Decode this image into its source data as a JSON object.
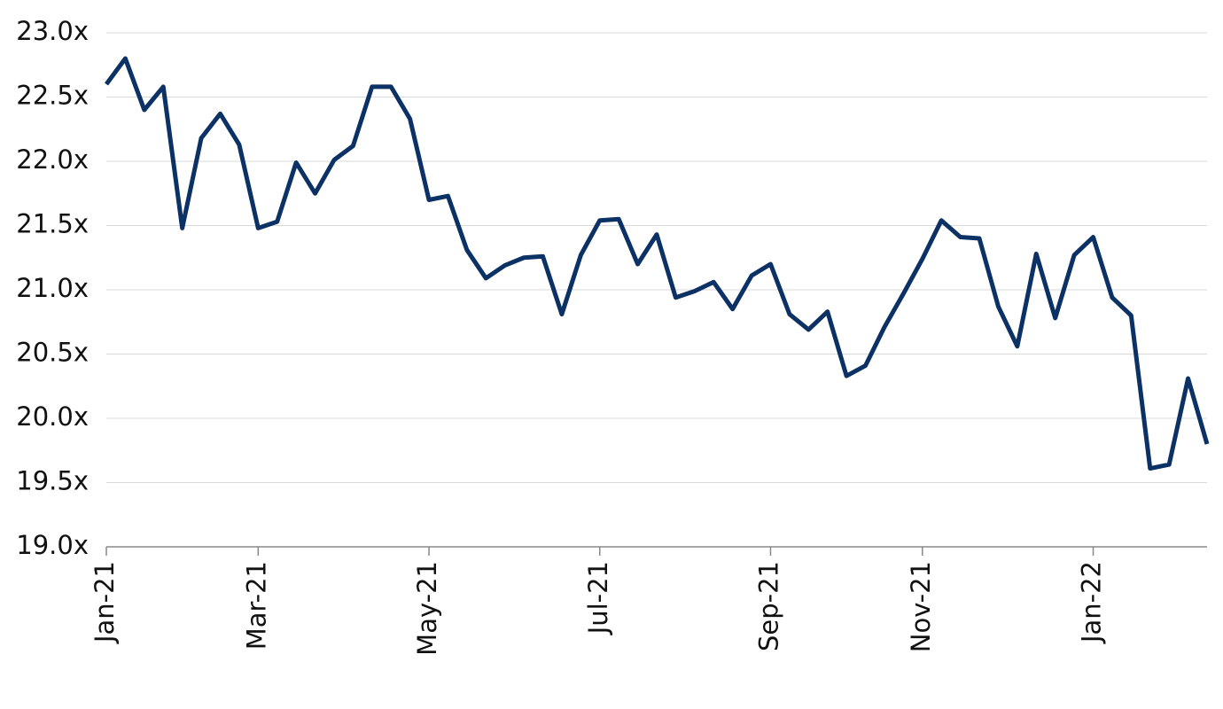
{
  "chart_data": {
    "type": "line",
    "categories": [
      "Jan-21",
      null,
      null,
      null,
      null,
      null,
      null,
      null,
      "Mar-21",
      null,
      null,
      null,
      null,
      null,
      null,
      null,
      null,
      "May-21",
      null,
      null,
      null,
      null,
      null,
      null,
      null,
      null,
      "Jul-21",
      null,
      null,
      null,
      null,
      null,
      null,
      null,
      null,
      "Sep-21",
      null,
      null,
      null,
      null,
      null,
      null,
      null,
      "Nov-21",
      null,
      null,
      null,
      null,
      null,
      null,
      null,
      null,
      "Jan-22",
      null,
      null,
      null,
      null,
      null,
      null
    ],
    "series": [
      {
        "color": "#0b3165",
        "values": [
          22.6,
          22.8,
          22.4,
          22.58,
          21.48,
          22.18,
          22.37,
          22.13,
          21.48,
          21.53,
          21.99,
          21.75,
          22.01,
          22.12,
          22.58,
          22.58,
          22.33,
          21.7,
          21.73,
          21.31,
          21.09,
          21.19,
          21.25,
          21.26,
          20.81,
          21.27,
          21.54,
          21.55,
          21.2,
          21.43,
          20.94,
          20.99,
          21.06,
          20.85,
          21.11,
          21.2,
          20.81,
          20.69,
          20.83,
          20.33,
          20.41,
          20.71,
          20.97,
          21.24,
          21.54,
          21.41,
          21.4,
          20.87,
          20.56,
          21.28,
          20.78,
          21.27,
          21.41,
          20.94,
          20.8,
          19.61,
          19.64,
          20.31,
          19.8
        ]
      }
    ],
    "ylim": [
      19,
      23
    ],
    "yticks": [
      {
        "value": 19,
        "label": "19.0x"
      },
      {
        "value": 19.5,
        "label": "19.5x"
      },
      {
        "value": 20,
        "label": "20.0x"
      },
      {
        "value": 20.5,
        "label": "20.5x"
      },
      {
        "value": 21,
        "label": "21.0x"
      },
      {
        "value": 21.5,
        "label": "21.5x"
      },
      {
        "value": 22,
        "label": "22.0x"
      },
      {
        "value": 22.5,
        "label": "22.5x"
      },
      {
        "value": 23,
        "label": "23.0x"
      }
    ],
    "grid": true
  }
}
